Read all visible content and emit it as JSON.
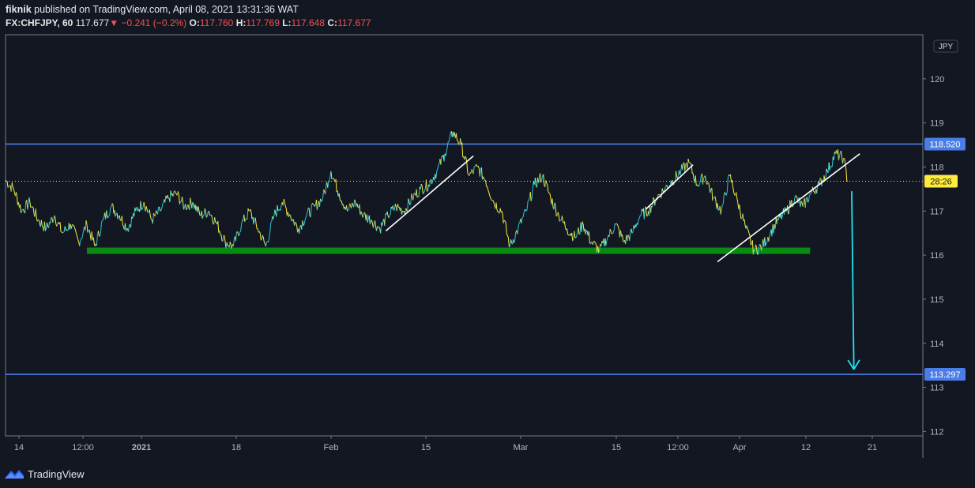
{
  "header": {
    "author": "fiknik",
    "publish_text": "published on TradingView.com, April 08, 2021 13:31:36 WAT",
    "symbol": "FX:CHFJPY, 60",
    "last": "117.677",
    "change_arrow": "▼",
    "change": "−0.241 (−0.2%)",
    "open_label": "O:",
    "open": "117.760",
    "high_label": "H:",
    "high": "117.769",
    "low_label": "L:",
    "low": "117.648",
    "close_label": "C:",
    "close": "117.677"
  },
  "footer": {
    "brand": "TradingView",
    "logo_icon": "tradingview-logo-icon"
  },
  "currency_badge": "JPY",
  "colors": {
    "background": "#131722",
    "price_line_up": "#26c6da",
    "price_line_down": "#ffeb3b",
    "horizontal_level": "#4a7ee6",
    "support_zone": "#0b8a12",
    "trendline": "#ffffff",
    "projection_arrow": "#26e0f0",
    "current_price_label": "#ffeb3b"
  },
  "chart_data": {
    "type": "line",
    "instrument": "FX:CHFJPY",
    "timeframe": "60",
    "y_range": [
      111.9,
      121.0
    ],
    "y_ticks": [
      112,
      113,
      114,
      115,
      116,
      117,
      118,
      119,
      120
    ],
    "x_ticks": [
      "14",
      "12:00",
      "2021",
      "18",
      "Feb",
      "15",
      "Mar",
      "15",
      "12:00",
      "Apr",
      "12",
      "21"
    ],
    "price_path": [
      [
        0,
        117.7
      ],
      [
        4,
        117.5
      ],
      [
        8,
        117.0
      ],
      [
        12,
        117.2
      ],
      [
        16,
        116.8
      ],
      [
        20,
        116.6
      ],
      [
        24,
        116.9
      ],
      [
        28,
        116.5
      ],
      [
        32,
        116.7
      ],
      [
        36,
        116.3
      ],
      [
        40,
        116.7
      ],
      [
        44,
        116.2
      ],
      [
        48,
        116.8
      ],
      [
        52,
        117.1
      ],
      [
        56,
        116.9
      ],
      [
        60,
        116.6
      ],
      [
        64,
        117.0
      ],
      [
        68,
        117.2
      ],
      [
        72,
        116.8
      ],
      [
        76,
        117.0
      ],
      [
        80,
        117.3
      ],
      [
        84,
        117.4
      ],
      [
        88,
        117.1
      ],
      [
        92,
        117.2
      ],
      [
        96,
        116.9
      ],
      [
        100,
        117.0
      ],
      [
        104,
        116.7
      ],
      [
        108,
        116.3
      ],
      [
        112,
        116.2
      ],
      [
        116,
        116.7
      ],
      [
        120,
        117.0
      ],
      [
        124,
        116.6
      ],
      [
        128,
        116.2
      ],
      [
        132,
        116.9
      ],
      [
        136,
        117.2
      ],
      [
        140,
        116.9
      ],
      [
        144,
        116.6
      ],
      [
        148,
        116.9
      ],
      [
        152,
        117.1
      ],
      [
        156,
        117.3
      ],
      [
        160,
        117.9
      ],
      [
        164,
        117.4
      ],
      [
        168,
        117.0
      ],
      [
        172,
        117.2
      ],
      [
        176,
        116.9
      ],
      [
        180,
        116.8
      ],
      [
        184,
        116.6
      ],
      [
        188,
        116.9
      ],
      [
        192,
        117.1
      ],
      [
        196,
        117.0
      ],
      [
        200,
        117.3
      ],
      [
        204,
        117.5
      ],
      [
        208,
        117.6
      ],
      [
        212,
        117.9
      ],
      [
        216,
        118.3
      ],
      [
        220,
        118.8
      ],
      [
        224,
        118.5
      ],
      [
        228,
        117.8
      ],
      [
        232,
        118.0
      ],
      [
        236,
        117.7
      ],
      [
        240,
        117.2
      ],
      [
        244,
        117.0
      ],
      [
        248,
        116.2
      ],
      [
        252,
        116.6
      ],
      [
        256,
        117.0
      ],
      [
        260,
        117.6
      ],
      [
        264,
        117.8
      ],
      [
        268,
        117.3
      ],
      [
        272,
        116.9
      ],
      [
        276,
        116.6
      ],
      [
        280,
        116.4
      ],
      [
        284,
        116.7
      ],
      [
        288,
        116.3
      ],
      [
        292,
        116.1
      ],
      [
        296,
        116.4
      ],
      [
        300,
        116.7
      ],
      [
        304,
        116.3
      ],
      [
        308,
        116.5
      ],
      [
        312,
        116.9
      ],
      [
        316,
        117.0
      ],
      [
        320,
        117.3
      ],
      [
        324,
        117.5
      ],
      [
        328,
        117.7
      ],
      [
        332,
        117.9
      ],
      [
        336,
        118.1
      ],
      [
        340,
        117.6
      ],
      [
        344,
        117.8
      ],
      [
        348,
        117.3
      ],
      [
        352,
        117.0
      ],
      [
        356,
        117.8
      ],
      [
        360,
        117.2
      ],
      [
        364,
        116.6
      ],
      [
        368,
        116.1
      ],
      [
        372,
        116.2
      ],
      [
        376,
        116.5
      ],
      [
        380,
        116.8
      ],
      [
        384,
        117.0
      ],
      [
        388,
        117.3
      ],
      [
        392,
        117.1
      ],
      [
        396,
        117.4
      ],
      [
        400,
        117.6
      ],
      [
        404,
        117.9
      ],
      [
        408,
        118.3
      ],
      [
        412,
        118.2
      ],
      [
        414,
        117.68
      ]
    ],
    "price_path_x_range": [
      0,
      430
    ],
    "horizontal_levels": [
      {
        "value": 118.52,
        "label": "118.520"
      },
      {
        "value": 113.297,
        "label": "113.297"
      }
    ],
    "current_price": {
      "value": 117.677,
      "label": "28:26"
    },
    "support_zone": {
      "value": 116.1,
      "x_from": 40,
      "x_to": 380
    },
    "trendlines": [
      {
        "from": [
          187,
          116.55
        ],
        "to": [
          230,
          118.25
        ]
      },
      {
        "from": [
          315,
          117.05
        ],
        "to": [
          338,
          118.05
        ]
      },
      {
        "from": [
          350,
          115.85
        ],
        "to": [
          420,
          118.3
        ]
      }
    ],
    "projection_arrow": {
      "from": [
        416,
        117.45
      ],
      "to": [
        426,
        113.3
      ]
    }
  }
}
